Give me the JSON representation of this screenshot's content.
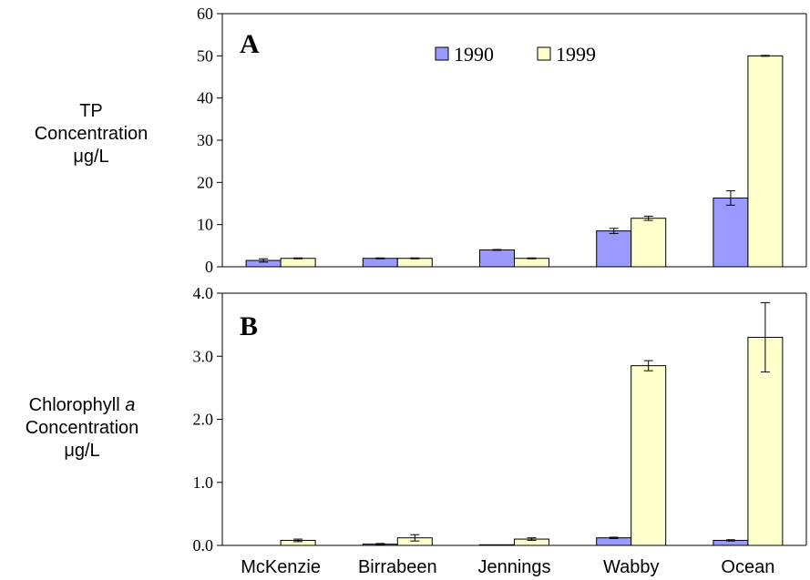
{
  "chart_data": [
    {
      "type": "bar",
      "panel_label": "A",
      "ylabel": [
        "TP",
        "Concentration",
        "μg/L"
      ],
      "ylim": [
        0,
        60
      ],
      "yticks": [
        0,
        10,
        20,
        30,
        40,
        50,
        60
      ],
      "ytick_labels": [
        "0",
        "10",
        "20",
        "30",
        "40",
        "50",
        "60"
      ],
      "categories": [
        "McKenzie",
        "Birrabeen",
        "Jennings",
        "Wabby",
        "Ocean"
      ],
      "legend_placement": "top-center",
      "series": [
        {
          "name": "1990",
          "color": "#9999ff",
          "values": [
            1.5,
            2.0,
            4.0,
            8.5,
            16.3
          ],
          "errors": [
            0.4,
            0.1,
            0.1,
            0.6,
            1.7
          ]
        },
        {
          "name": "1999",
          "color": "#ffffcc",
          "values": [
            2.0,
            2.0,
            2.0,
            11.5,
            50.0
          ],
          "errors": [
            0.1,
            0.1,
            0.1,
            0.5,
            0.1
          ]
        }
      ]
    },
    {
      "type": "bar",
      "panel_label": "B",
      "ylabel": [
        "Chlorophyll a",
        "Concentration",
        "μg/L"
      ],
      "ylim": [
        0,
        4.0
      ],
      "yticks": [
        0,
        1,
        2,
        3,
        4
      ],
      "ytick_labels": [
        "0.0",
        "1.0",
        "2.0",
        "3.0",
        "4.0"
      ],
      "categories": [
        "McKenzie",
        "Birrabeen",
        "Jennings",
        "Wabby",
        "Ocean"
      ],
      "series": [
        {
          "name": "1990",
          "color": "#9999ff",
          "values": [
            0.0,
            0.02,
            0.01,
            0.12,
            0.08
          ],
          "errors": [
            0.0,
            0.01,
            0.0,
            0.01,
            0.01
          ]
        },
        {
          "name": "1999",
          "color": "#ffffcc",
          "values": [
            0.08,
            0.12,
            0.1,
            2.85,
            3.3
          ],
          "errors": [
            0.02,
            0.05,
            0.02,
            0.08,
            0.55
          ]
        }
      ]
    }
  ]
}
